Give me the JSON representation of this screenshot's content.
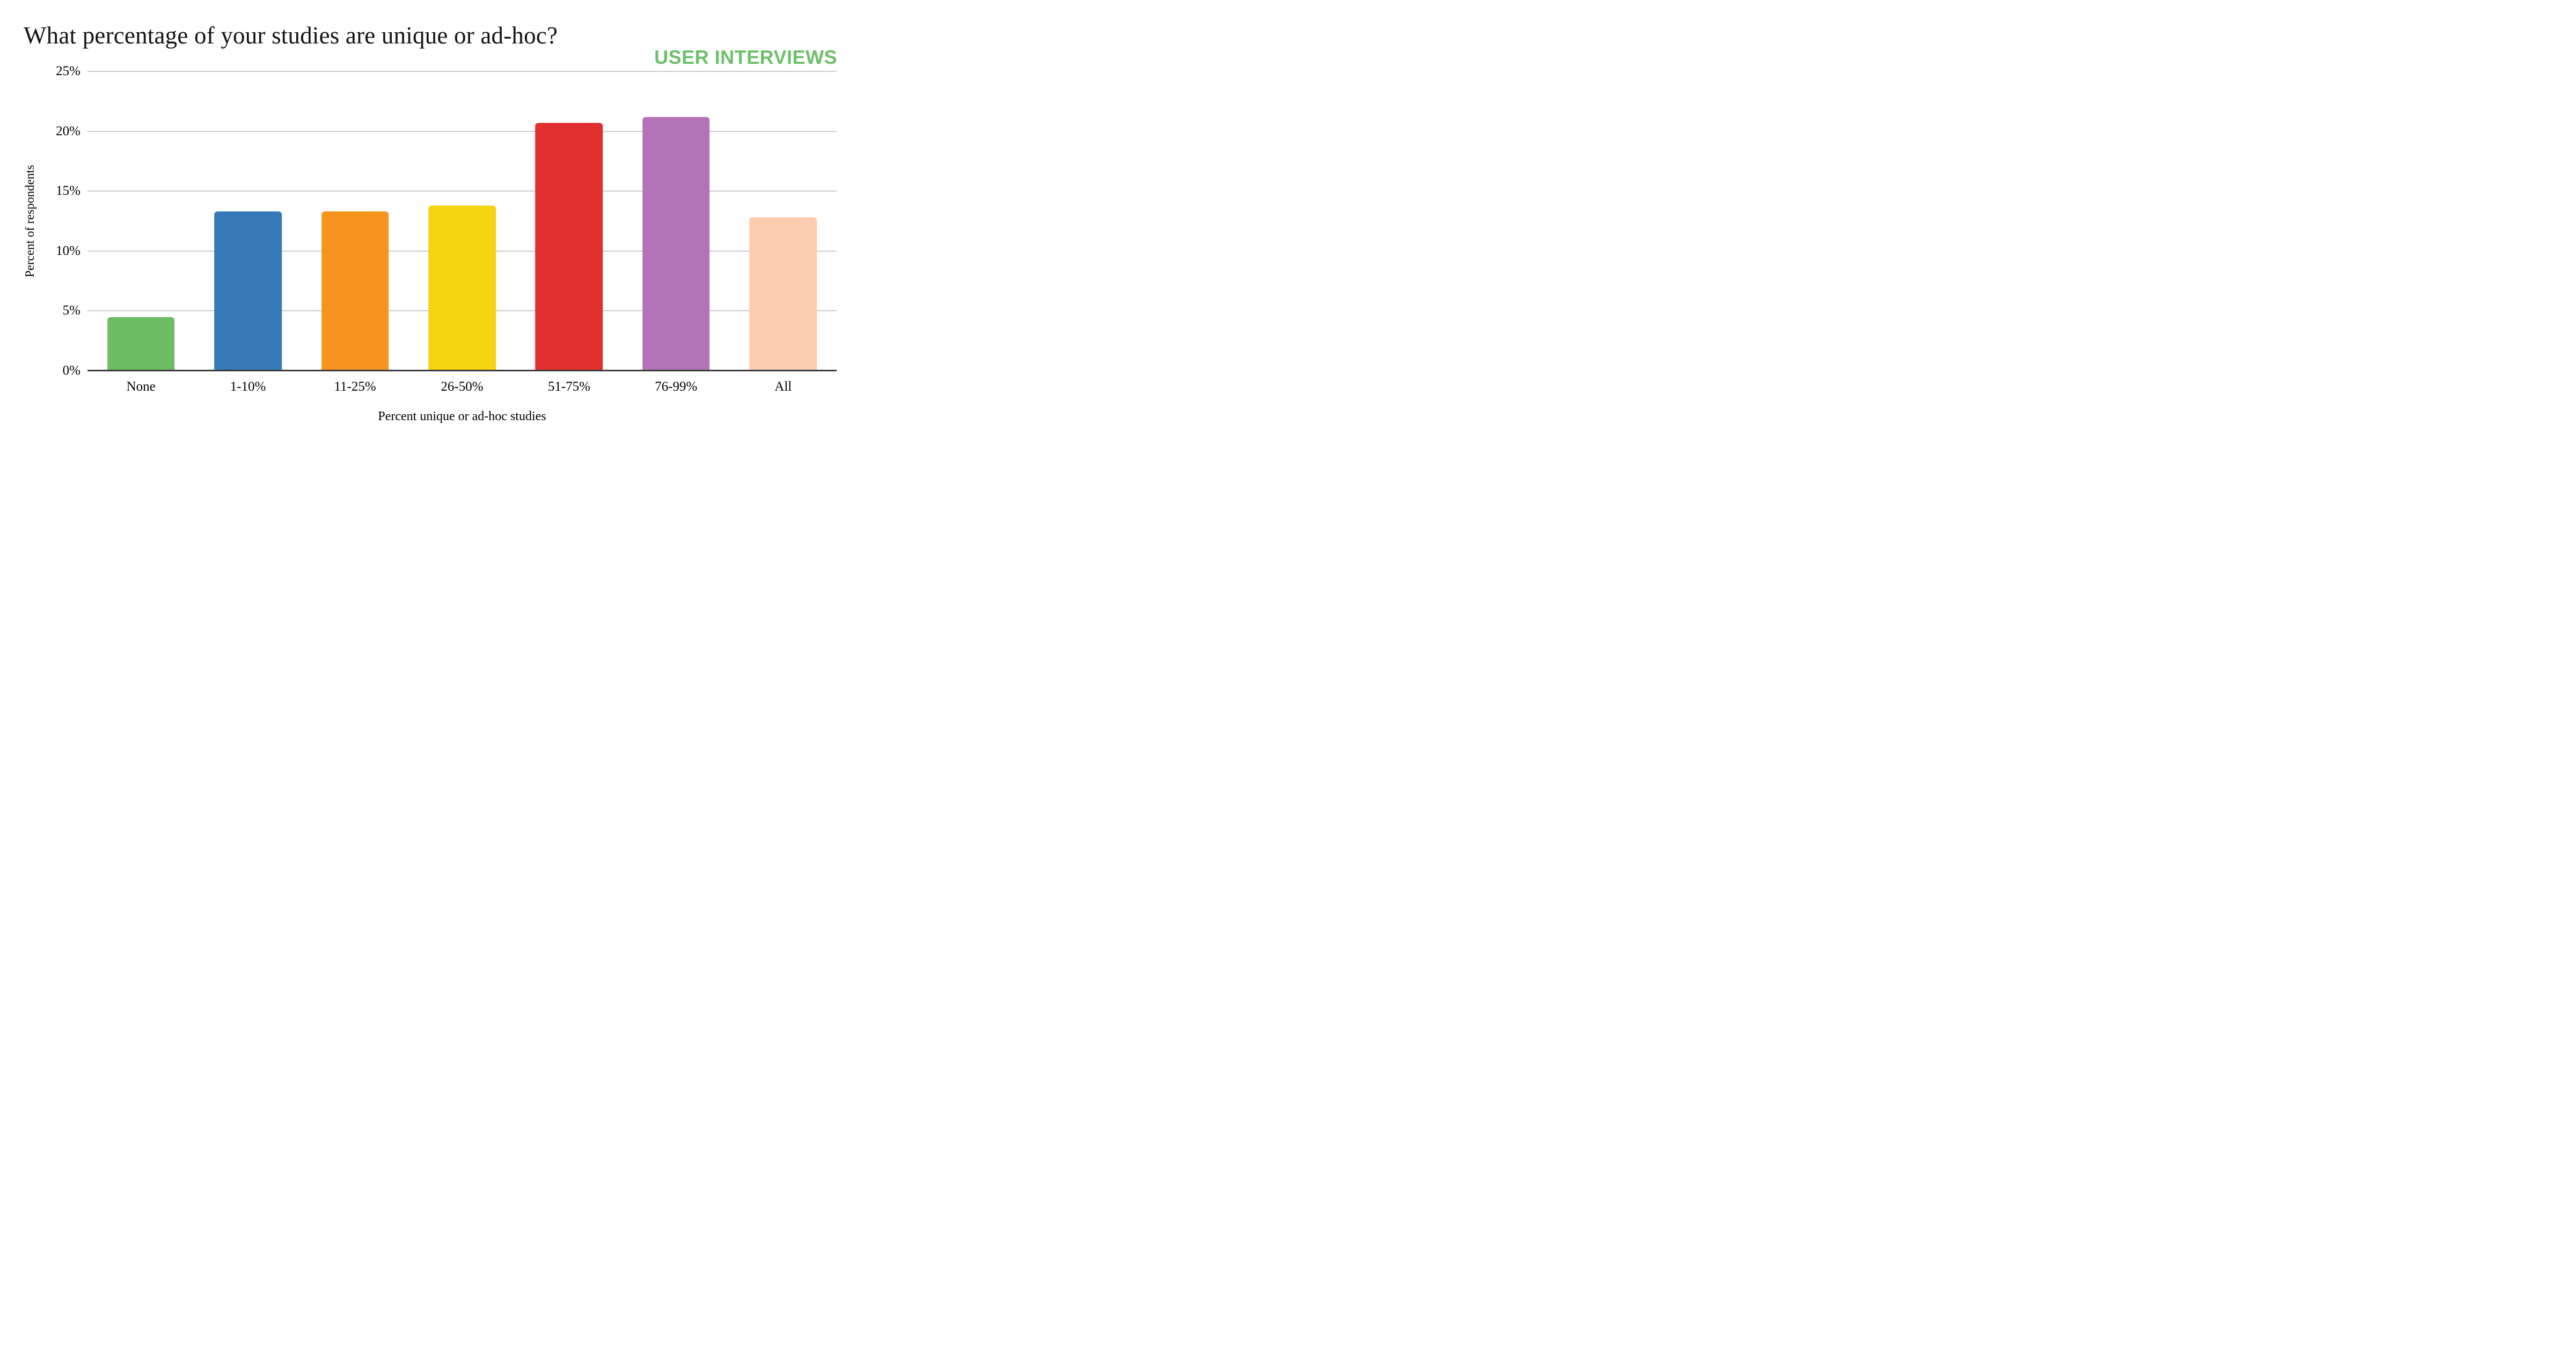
{
  "brand": {
    "logo_text": "USER INTERVIEWS",
    "logo_color": "#6dc069"
  },
  "styles": {
    "background": "#ffffff",
    "gridline_color": "#cccccc",
    "axis_line_color": "#3b3b3b",
    "text_color": "#111111"
  },
  "chart_data": {
    "type": "bar",
    "title": "What percentage of your studies are unique or ad-hoc?",
    "xlabel": "Percent unique or ad-hoc studies",
    "ylabel": "Percent of respondents",
    "categories": [
      "None",
      "1-10%",
      "11-25%",
      "26-50%",
      "51-75%",
      "76-99%",
      "All"
    ],
    "values": [
      4.5,
      13.3,
      13.3,
      13.8,
      20.7,
      21.2,
      12.8
    ],
    "bar_colors": [
      "#6cbc63",
      "#3579b6",
      "#f7941e",
      "#f4d512",
      "#e03130",
      "#b573b7",
      "#fdcbb0"
    ],
    "ylim": [
      0,
      25
    ],
    "yticks": [
      "0%",
      "5%",
      "10%",
      "15%",
      "20%",
      "25%"
    ],
    "grid": true,
    "legend": false,
    "bar_corner_radius": "rounded-top"
  }
}
